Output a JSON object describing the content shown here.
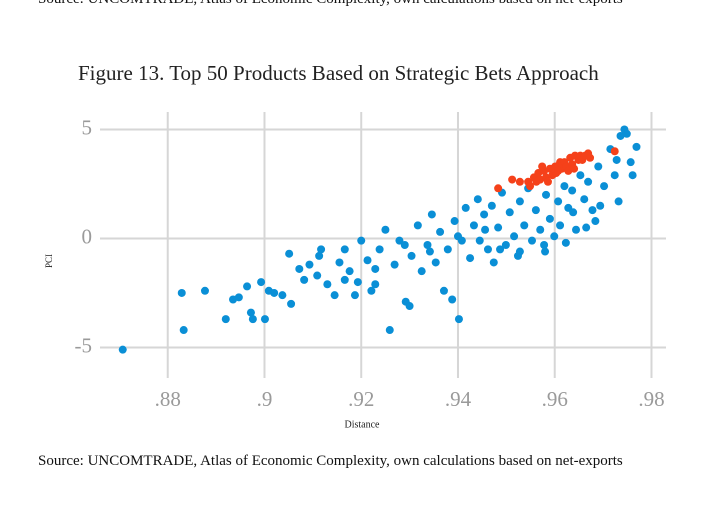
{
  "top_text": "Source: UNCOMTRADE, Atlas of Economic Complexity, own calculations based on net-exports",
  "source": "Source: UNCOMTRADE, Atlas of Economic Complexity, own calculations based on net-exports",
  "chart_data": {
    "type": "scatter",
    "title": "Figure 13. Top 50 Products Based on Strategic Bets Approach",
    "x_label": "Distance",
    "y_label": "PCI",
    "xlim": [
      0.866,
      0.983
    ],
    "ylim": [
      -6.4,
      5.8
    ],
    "xticks": [
      {
        "value": 0.88,
        "label": ".88"
      },
      {
        "value": 0.9,
        "label": ".9"
      },
      {
        "value": 0.92,
        "label": ".92"
      },
      {
        "value": 0.94,
        "label": ".94"
      },
      {
        "value": 0.96,
        "label": ".96"
      },
      {
        "value": 0.98,
        "label": ".98"
      }
    ],
    "yticks": [
      5,
      0,
      -5
    ],
    "grid": true,
    "series": [
      {
        "color": "#0a8fd6",
        "x": [
          0.8707,
          0.8829,
          0.8833,
          0.8877,
          0.892,
          0.8935,
          0.8947,
          0.8964,
          0.8972,
          0.8976,
          0.9001,
          0.8993,
          0.9009,
          0.902,
          0.9037,
          0.9051,
          0.9055,
          0.9072,
          0.9082,
          0.9093,
          0.9109,
          0.9117,
          0.913,
          0.9145,
          0.9155,
          0.9166,
          0.9176,
          0.9187,
          0.9193,
          0.92,
          0.9213,
          0.9221,
          0.9229,
          0.9238,
          0.925,
          0.9259,
          0.9269,
          0.9279,
          0.9292,
          0.93,
          0.9304,
          0.9317,
          0.9325,
          0.9337,
          0.9346,
          0.9354,
          0.9363,
          0.9371,
          0.9379,
          0.9388,
          0.9393,
          0.9402,
          0.9408,
          0.9416,
          0.9425,
          0.9433,
          0.9441,
          0.9445,
          0.9454,
          0.9462,
          0.947,
          0.9474,
          0.9483,
          0.9491,
          0.9499,
          0.9507,
          0.9516,
          0.9524,
          0.9528,
          0.9537,
          0.9545,
          0.9553,
          0.9561,
          0.957,
          0.9578,
          0.9582,
          0.959,
          0.9599,
          0.9607,
          0.9611,
          0.962,
          0.9628,
          0.9636,
          0.9644,
          0.9653,
          0.9661,
          0.9669,
          0.9678,
          0.9684,
          0.969,
          0.9702,
          0.9715,
          0.9724,
          0.9728,
          0.9736,
          0.9744,
          0.9749,
          0.9757,
          0.9769,
          0.9761,
          0.9732,
          0.9694,
          0.9665,
          0.9638,
          0.9623,
          0.958,
          0.9528,
          0.9487,
          0.9456,
          0.94,
          0.9342,
          0.929,
          0.9229,
          0.9166,
          0.9113
        ],
        "values": [
          -5.1,
          -2.5,
          -4.2,
          -2.4,
          -3.7,
          -2.8,
          -2.7,
          -2.2,
          -3.4,
          -3.7,
          -3.7,
          -2.0,
          -2.4,
          -2.5,
          -2.6,
          -0.7,
          -3.0,
          -1.4,
          -1.9,
          -1.2,
          -1.7,
          -0.5,
          -2.1,
          -2.6,
          -1.1,
          -0.5,
          -1.5,
          -2.6,
          -2.0,
          -0.1,
          -1.0,
          -2.4,
          -2.1,
          -0.5,
          0.4,
          -4.2,
          -1.2,
          -0.1,
          -2.9,
          -3.1,
          -0.8,
          0.6,
          -1.5,
          -0.3,
          1.1,
          -1.1,
          0.3,
          -2.4,
          -0.5,
          -2.8,
          0.8,
          -3.7,
          -0.1,
          1.4,
          -0.9,
          0.6,
          1.8,
          -0.1,
          1.1,
          -0.5,
          1.5,
          -1.1,
          0.5,
          2.1,
          -0.3,
          1.2,
          0.1,
          -0.8,
          1.7,
          0.6,
          2.3,
          -0.1,
          1.3,
          0.4,
          -0.3,
          2.0,
          0.9,
          0.1,
          1.7,
          0.6,
          2.4,
          1.4,
          2.2,
          0.4,
          2.9,
          1.8,
          2.6,
          1.3,
          0.8,
          3.3,
          2.4,
          4.1,
          2.9,
          3.6,
          4.7,
          5.0,
          4.8,
          3.5,
          4.2,
          2.9,
          1.7,
          1.5,
          0.5,
          1.2,
          -0.2,
          -0.6,
          -0.6,
          -0.5,
          0.4,
          0.1,
          -0.6,
          -0.3,
          -1.4,
          -1.9,
          -0.8
        ]
      },
      {
        "color": "#f5411a",
        "x": [
          0.9483,
          0.9512,
          0.9528,
          0.9545,
          0.9557,
          0.9566,
          0.957,
          0.9578,
          0.9582,
          0.959,
          0.9595,
          0.9601,
          0.9603,
          0.9611,
          0.9615,
          0.962,
          0.9624,
          0.9632,
          0.9636,
          0.9642,
          0.9649,
          0.9653,
          0.9657,
          0.9663,
          0.9669,
          0.9673,
          0.9724,
          0.9562,
          0.9586,
          0.9607,
          0.9628,
          0.964,
          0.9574,
          0.9549
        ],
        "values": [
          2.3,
          2.7,
          2.6,
          2.6,
          2.8,
          3.0,
          2.7,
          3.1,
          2.8,
          3.2,
          2.9,
          3.3,
          3.0,
          3.5,
          3.2,
          3.5,
          3.3,
          3.7,
          3.4,
          3.8,
          3.6,
          3.8,
          3.6,
          3.8,
          3.9,
          3.7,
          4.0,
          2.6,
          2.6,
          3.1,
          3.1,
          3.2,
          3.3,
          2.4
        ]
      }
    ]
  }
}
